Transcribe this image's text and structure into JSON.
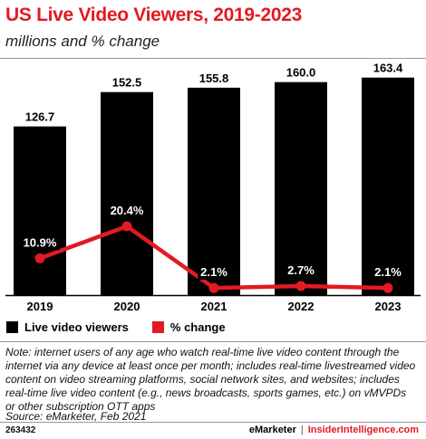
{
  "header": {
    "title": "US Live Video Viewers, 2019-2023",
    "subtitle": "millions and % change"
  },
  "chart_data": {
    "type": "bar",
    "categories": [
      "2019",
      "2020",
      "2021",
      "2022",
      "2023"
    ],
    "series": [
      {
        "name": "Live video viewers",
        "type": "bar",
        "values": [
          126.7,
          152.5,
          155.8,
          160.0,
          163.4
        ],
        "labels": [
          "126.7",
          "152.5",
          "155.8",
          "160.0",
          "163.4"
        ],
        "color": "#000000"
      },
      {
        "name": "% change",
        "type": "line",
        "values": [
          10.9,
          20.4,
          2.1,
          2.7,
          2.1
        ],
        "labels": [
          "10.9%",
          "20.4%",
          "2.1%",
          "2.7%",
          "2.1%"
        ],
        "color": "#e21a23"
      }
    ],
    "xlabel": "",
    "ylabel": "",
    "legend_position": "bottom-left",
    "grid": false
  },
  "legend": {
    "items": [
      {
        "label": "Live video viewers",
        "color": "#000000"
      },
      {
        "label": "% change",
        "color": "#e21a23"
      }
    ]
  },
  "footnote": {
    "note": "Note: internet users of any age who watch real-time live video content through the internet via any device at least once per month; includes real-time livestreamed video content on video streaming platforms, social network sites, and websites; includes real-time live video content (e.g., news broadcasts, sports games, etc.) on vMVPDs or other subscription OTT apps",
    "source": "Source: eMarketer, Feb 2021"
  },
  "footer": {
    "chart_id": "263432",
    "brand": "eMarketer",
    "separator": "|",
    "site": "InsiderIntelligence.com"
  },
  "colors": {
    "accent": "#e21a23",
    "bar": "#000000"
  }
}
